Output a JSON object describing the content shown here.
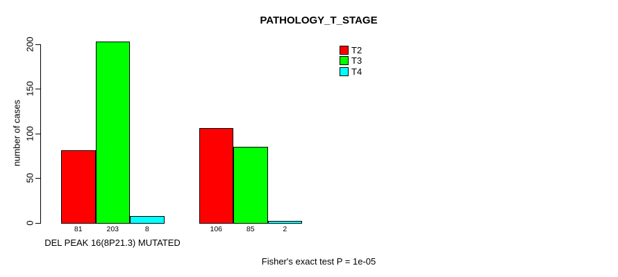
{
  "chart_data": {
    "type": "bar",
    "title": "PATHOLOGY_T_STAGE",
    "ylabel": "number of cases",
    "xlabel": "",
    "ylim": [
      0,
      200
    ],
    "yticks": [
      0,
      50,
      100,
      150,
      200
    ],
    "grid": false,
    "legend_position": "top-right",
    "series": [
      {
        "name": "T2",
        "color": "#ff0000"
      },
      {
        "name": "T3",
        "color": "#00ff00"
      },
      {
        "name": "T4",
        "color": "#00ffff"
      }
    ],
    "groups": [
      {
        "label": "DEL PEAK 16(8P21.3) MUTATED",
        "values": [
          81,
          203,
          8
        ]
      },
      {
        "label": "",
        "values": [
          106,
          85,
          2
        ]
      }
    ],
    "bar_value_labels": [
      "81",
      "203",
      "8",
      "106",
      "85",
      "2"
    ],
    "annotation": "Fisher's exact test P = 1e-05",
    "text_color": "#000000",
    "background_color": "#ffffff"
  }
}
